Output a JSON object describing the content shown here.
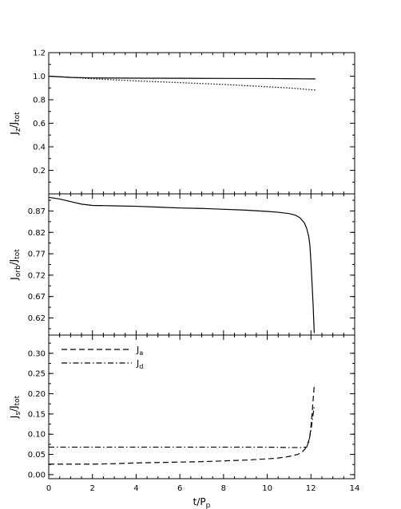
{
  "chart_data": {
    "type": "line",
    "shared_x": {
      "label": "t/P_p",
      "ticks": [
        0,
        2,
        4,
        6,
        8,
        10,
        12,
        14
      ],
      "xlim": [
        0,
        14
      ]
    },
    "panels": [
      {
        "ylabel": "J_z/J_tot",
        "ylim": [
          0.0,
          1.2
        ],
        "yticks": [
          0.2,
          0.4,
          0.6,
          0.8,
          1.0,
          1.2
        ],
        "ytick_labels": [
          "0.2",
          "0.4",
          "0.6",
          "0.8",
          "1.0",
          "1.2"
        ],
        "series": [
          {
            "style": "solid",
            "x": [
              0,
              1,
              2,
              4,
              6,
              8,
              10,
              11,
              12,
              12.2
            ],
            "y": [
              1.0,
              0.99,
              0.985,
              0.983,
              0.982,
              0.981,
              0.98,
              0.979,
              0.977,
              0.977
            ]
          },
          {
            "style": "dotted",
            "x": [
              0,
              1,
              2,
              4,
              6,
              8,
              10,
              11,
              12,
              12.2
            ],
            "y": [
              1.0,
              0.99,
              0.978,
              0.96,
              0.945,
              0.93,
              0.91,
              0.9,
              0.885,
              0.882
            ]
          }
        ]
      },
      {
        "ylabel": "J_orb/J_tot",
        "ylim": [
          0.58,
          0.91
        ],
        "yticks": [
          0.62,
          0.67,
          0.72,
          0.77,
          0.82,
          0.87
        ],
        "ytick_labels": [
          "0.62",
          "0.67",
          "0.72",
          "0.77",
          "0.82",
          "0.87"
        ],
        "series": [
          {
            "style": "solid",
            "x": [
              0,
              0.5,
              1,
              1.5,
              2,
              3,
              4,
              5,
              6,
              7,
              8,
              9,
              10,
              10.5,
              11,
              11.3,
              11.5,
              11.7,
              11.8,
              11.9,
              11.95,
              12.0,
              12.05,
              12.1,
              12.15
            ],
            "y": [
              0.902,
              0.898,
              0.892,
              0.886,
              0.883,
              0.882,
              0.881,
              0.879,
              0.877,
              0.876,
              0.874,
              0.872,
              0.869,
              0.867,
              0.864,
              0.86,
              0.854,
              0.842,
              0.83,
              0.81,
              0.79,
              0.75,
              0.7,
              0.65,
              0.585
            ]
          }
        ]
      },
      {
        "ylabel": "J_s/J_tot",
        "ylim": [
          -0.01,
          0.345
        ],
        "yticks": [
          0.0,
          0.05,
          0.1,
          0.15,
          0.2,
          0.25,
          0.3
        ],
        "ytick_labels": [
          "0.00",
          "0.05",
          "0.10",
          "0.15",
          "0.20",
          "0.25",
          "0.30"
        ],
        "legend": [
          {
            "label": "J_a",
            "style": "dashed"
          },
          {
            "label": "J_d",
            "style": "dashdot"
          }
        ],
        "series": [
          {
            "style": "dashed",
            "x": [
              0,
              1,
              2,
              3,
              4,
              5,
              6,
              7,
              8,
              9,
              10,
              10.5,
              11,
              11.4,
              11.6,
              11.75,
              11.85,
              11.95,
              12.0,
              12.05,
              12.1,
              12.15
            ],
            "y": [
              0.026,
              0.026,
              0.026,
              0.027,
              0.029,
              0.03,
              0.031,
              0.032,
              0.034,
              0.036,
              0.039,
              0.041,
              0.045,
              0.05,
              0.056,
              0.065,
              0.075,
              0.095,
              0.12,
              0.15,
              0.185,
              0.22
            ]
          },
          {
            "style": "dashdot",
            "x": [
              0,
              1,
              2,
              3,
              4,
              5,
              6,
              7,
              8,
              9,
              10,
              11,
              11.5,
              11.8,
              11.9,
              12.0,
              12.1,
              12.15
            ],
            "y": [
              0.068,
              0.068,
              0.068,
              0.068,
              0.068,
              0.068,
              0.068,
              0.068,
              0.068,
              0.068,
              0.068,
              0.067,
              0.067,
              0.068,
              0.08,
              0.11,
              0.15,
              0.17
            ]
          }
        ]
      }
    ]
  }
}
